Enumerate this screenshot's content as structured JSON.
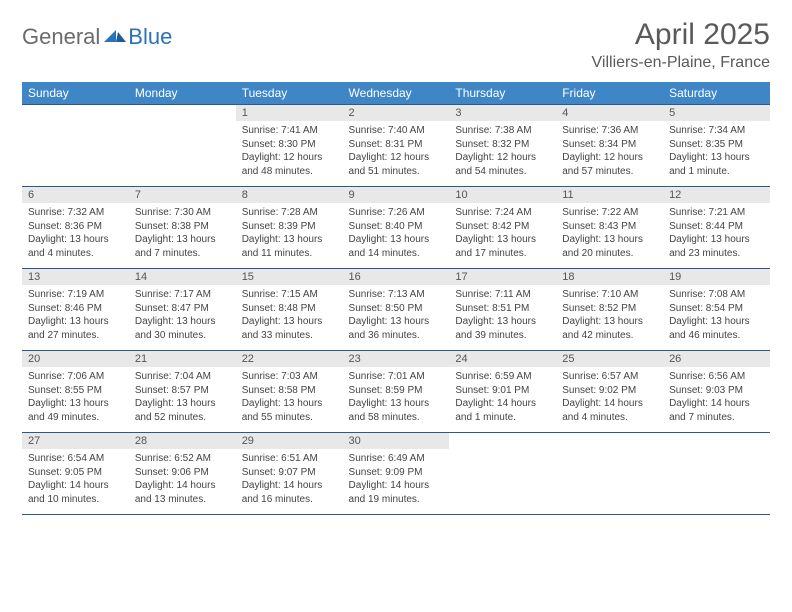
{
  "logo": {
    "part1": "General",
    "part2": "Blue"
  },
  "title": {
    "month": "April 2025",
    "location": "Villiers-en-Plaine, France"
  },
  "colors": {
    "header_bg": "#3f86c7",
    "daynum_bg": "#e8e8e8",
    "rule": "#2b5a86",
    "logo_gray": "#6b6b6b",
    "logo_blue": "#2b72b8",
    "text": "#444444"
  },
  "weekdays": [
    "Sunday",
    "Monday",
    "Tuesday",
    "Wednesday",
    "Thursday",
    "Friday",
    "Saturday"
  ],
  "weeks": [
    [
      null,
      null,
      {
        "n": "1",
        "sr": "7:41 AM",
        "ss": "8:30 PM",
        "dl": "12 hours and 48 minutes."
      },
      {
        "n": "2",
        "sr": "7:40 AM",
        "ss": "8:31 PM",
        "dl": "12 hours and 51 minutes."
      },
      {
        "n": "3",
        "sr": "7:38 AM",
        "ss": "8:32 PM",
        "dl": "12 hours and 54 minutes."
      },
      {
        "n": "4",
        "sr": "7:36 AM",
        "ss": "8:34 PM",
        "dl": "12 hours and 57 minutes."
      },
      {
        "n": "5",
        "sr": "7:34 AM",
        "ss": "8:35 PM",
        "dl": "13 hours and 1 minute."
      }
    ],
    [
      {
        "n": "6",
        "sr": "7:32 AM",
        "ss": "8:36 PM",
        "dl": "13 hours and 4 minutes."
      },
      {
        "n": "7",
        "sr": "7:30 AM",
        "ss": "8:38 PM",
        "dl": "13 hours and 7 minutes."
      },
      {
        "n": "8",
        "sr": "7:28 AM",
        "ss": "8:39 PM",
        "dl": "13 hours and 11 minutes."
      },
      {
        "n": "9",
        "sr": "7:26 AM",
        "ss": "8:40 PM",
        "dl": "13 hours and 14 minutes."
      },
      {
        "n": "10",
        "sr": "7:24 AM",
        "ss": "8:42 PM",
        "dl": "13 hours and 17 minutes."
      },
      {
        "n": "11",
        "sr": "7:22 AM",
        "ss": "8:43 PM",
        "dl": "13 hours and 20 minutes."
      },
      {
        "n": "12",
        "sr": "7:21 AM",
        "ss": "8:44 PM",
        "dl": "13 hours and 23 minutes."
      }
    ],
    [
      {
        "n": "13",
        "sr": "7:19 AM",
        "ss": "8:46 PM",
        "dl": "13 hours and 27 minutes."
      },
      {
        "n": "14",
        "sr": "7:17 AM",
        "ss": "8:47 PM",
        "dl": "13 hours and 30 minutes."
      },
      {
        "n": "15",
        "sr": "7:15 AM",
        "ss": "8:48 PM",
        "dl": "13 hours and 33 minutes."
      },
      {
        "n": "16",
        "sr": "7:13 AM",
        "ss": "8:50 PM",
        "dl": "13 hours and 36 minutes."
      },
      {
        "n": "17",
        "sr": "7:11 AM",
        "ss": "8:51 PM",
        "dl": "13 hours and 39 minutes."
      },
      {
        "n": "18",
        "sr": "7:10 AM",
        "ss": "8:52 PM",
        "dl": "13 hours and 42 minutes."
      },
      {
        "n": "19",
        "sr": "7:08 AM",
        "ss": "8:54 PM",
        "dl": "13 hours and 46 minutes."
      }
    ],
    [
      {
        "n": "20",
        "sr": "7:06 AM",
        "ss": "8:55 PM",
        "dl": "13 hours and 49 minutes."
      },
      {
        "n": "21",
        "sr": "7:04 AM",
        "ss": "8:57 PM",
        "dl": "13 hours and 52 minutes."
      },
      {
        "n": "22",
        "sr": "7:03 AM",
        "ss": "8:58 PM",
        "dl": "13 hours and 55 minutes."
      },
      {
        "n": "23",
        "sr": "7:01 AM",
        "ss": "8:59 PM",
        "dl": "13 hours and 58 minutes."
      },
      {
        "n": "24",
        "sr": "6:59 AM",
        "ss": "9:01 PM",
        "dl": "14 hours and 1 minute."
      },
      {
        "n": "25",
        "sr": "6:57 AM",
        "ss": "9:02 PM",
        "dl": "14 hours and 4 minutes."
      },
      {
        "n": "26",
        "sr": "6:56 AM",
        "ss": "9:03 PM",
        "dl": "14 hours and 7 minutes."
      }
    ],
    [
      {
        "n": "27",
        "sr": "6:54 AM",
        "ss": "9:05 PM",
        "dl": "14 hours and 10 minutes."
      },
      {
        "n": "28",
        "sr": "6:52 AM",
        "ss": "9:06 PM",
        "dl": "14 hours and 13 minutes."
      },
      {
        "n": "29",
        "sr": "6:51 AM",
        "ss": "9:07 PM",
        "dl": "14 hours and 16 minutes."
      },
      {
        "n": "30",
        "sr": "6:49 AM",
        "ss": "9:09 PM",
        "dl": "14 hours and 19 minutes."
      },
      null,
      null,
      null
    ]
  ],
  "labels": {
    "sunrise": "Sunrise: ",
    "sunset": "Sunset: ",
    "daylight": "Daylight: "
  }
}
